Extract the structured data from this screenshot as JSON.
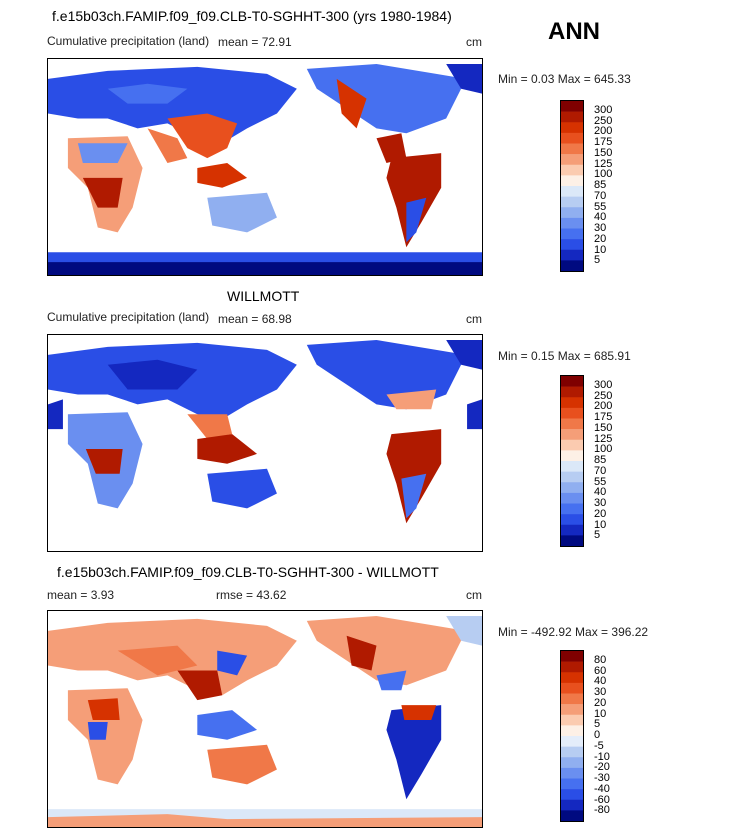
{
  "season_label": "ANN",
  "panels": [
    {
      "title": "f.e15b03ch.FAMIP.f09_f09.CLB-T0-SGHHT-300 (yrs 1980-1984)",
      "subtitle": "Cumulative precipitation (land)",
      "stat_left": "mean =   72.91",
      "units": "cm",
      "minmax": "Min =   0.03 Max = 645.33",
      "levels": [
        "300",
        "250",
        "200",
        "175",
        "150",
        "125",
        "100",
        "85",
        "70",
        "55",
        "40",
        "30",
        "20",
        "10",
        "5"
      ]
    },
    {
      "title": "WILLMOTT",
      "subtitle": "Cumulative precipitation (land)",
      "stat_left": "mean =   68.98",
      "units": "cm",
      "minmax": "Min =   0.15 Max = 685.91",
      "levels": [
        "300",
        "250",
        "200",
        "175",
        "150",
        "125",
        "100",
        "85",
        "70",
        "55",
        "40",
        "30",
        "20",
        "10",
        "5"
      ]
    },
    {
      "title": "f.e15b03ch.FAMIP.f09_f09.CLB-T0-SGHHT-300 - WILLMOTT",
      "stat_left": "mean =    3.93",
      "stat_mid": "rmse =   43.62",
      "units": "cm",
      "minmax": "Min = -492.92 Max = 396.22",
      "levels": [
        "80",
        "60",
        "40",
        "30",
        "20",
        "10",
        "5",
        "0",
        "-5",
        "-10",
        "-20",
        "-30",
        "-40",
        "-60",
        "-80"
      ]
    }
  ],
  "colors": {
    "abs_scale": [
      "#7f0000",
      "#b01a00",
      "#d63200",
      "#e8501e",
      "#f07848",
      "#f59e78",
      "#fbcbb0",
      "#fdf0e6",
      "#dbe8f8",
      "#b7cdf2",
      "#90aff0",
      "#6a8ff0",
      "#4670f0",
      "#2a4ee6",
      "#1428c0",
      "#000a80"
    ],
    "diff_scale": [
      "#7f0000",
      "#b01a00",
      "#d63200",
      "#e8501e",
      "#f07848",
      "#f59e78",
      "#fbcbb0",
      "#fdf0e6",
      "#e4edfa",
      "#b7cdf2",
      "#90aff0",
      "#6a8ff0",
      "#4670f0",
      "#2a4ee6",
      "#1428c0",
      "#000a80"
    ]
  }
}
